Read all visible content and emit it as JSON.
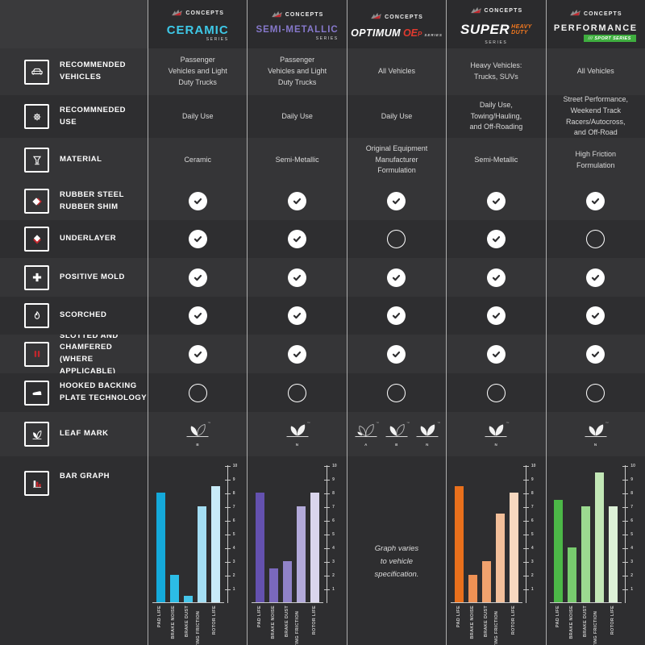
{
  "page": {
    "background": "#3A3A3C"
  },
  "brand": {
    "logo_text": "CONCEPTS"
  },
  "leaf_tm": "™",
  "rows": [
    {
      "id": "recommended-vehicles",
      "label": "RECOMMENDED\nVEHICLES",
      "icon": "car-icon"
    },
    {
      "id": "recommended-use",
      "label": "RECOMMNEDED\nUSE",
      "icon": "gear-icon"
    },
    {
      "id": "material",
      "label": "MATERIAL",
      "icon": "flask-icon"
    },
    {
      "id": "rubber-steel-rubber-shim",
      "label": "RUBBER STEEL\nRUBBER SHIM",
      "icon": "shim-icon"
    },
    {
      "id": "underlayer",
      "label": "UNDERLAYER",
      "icon": "underlayer-icon"
    },
    {
      "id": "positive-mold",
      "label": "POSITIVE MOLD",
      "icon": "plus-icon"
    },
    {
      "id": "scorched",
      "label": "SCORCHED",
      "icon": "flame-icon"
    },
    {
      "id": "slotted-chamfered",
      "label": "SLOTTED AND\nCHAMFERED (WHERE\nAPPLICABLE)",
      "icon": "slots-icon"
    },
    {
      "id": "hooked-backing-plate",
      "label": "HOOKED BACKING\nPLATE TECHNOLOGY",
      "icon": "hook-icon"
    },
    {
      "id": "leaf-mark",
      "label": "LEAF MARK",
      "icon": "leaf-icon"
    },
    {
      "id": "bar-graph",
      "label": "BAR GRAPH",
      "icon": "bar-chart-icon"
    }
  ],
  "columns": [
    {
      "id": "ceramic",
      "header": {
        "style": "two-tone",
        "name": "CERAMIC",
        "series": "SERIES",
        "accent": "#3EC9E8",
        "name_size": "15px"
      },
      "text_cells": [
        "Passenger\nVehicles and Light\nDuty Trucks",
        "Daily Use",
        "Ceramic"
      ],
      "feature_checks": [
        true,
        true,
        true,
        true,
        true,
        false
      ],
      "leaf_marks": [
        {
          "type": "B",
          "label": "B"
        }
      ],
      "chart_index": 0
    },
    {
      "id": "semi-metallic",
      "header": {
        "style": "two-tone",
        "name": "SEMI-METALLIC",
        "series": "SERIES",
        "accent": "#8678CB",
        "name_size": "11.5px"
      },
      "text_cells": [
        "Passenger\nVehicles and Light\nDuty Trucks",
        "Daily Use",
        "Semi-Metallic"
      ],
      "feature_checks": [
        true,
        true,
        true,
        true,
        true,
        false
      ],
      "leaf_marks": [
        {
          "type": "N",
          "label": "N"
        }
      ],
      "chart_index": 1
    },
    {
      "id": "optimum-oep",
      "header": {
        "style": "optimum",
        "name": "OPTIMUM",
        "accent_text": "OE",
        "accent_sub": "P",
        "series": "SERIES",
        "accent": "#E03A2F"
      },
      "text_cells": [
        "All Vehicles",
        "Daily Use",
        "Original Equipment\nManufacturer\nFormulation"
      ],
      "feature_checks": [
        true,
        false,
        true,
        true,
        true,
        false
      ],
      "leaf_marks": [
        {
          "type": "A",
          "label": "A"
        },
        {
          "type": "B",
          "label": "B"
        },
        {
          "type": "N",
          "label": "N"
        }
      ],
      "chart_index": 2
    },
    {
      "id": "super-heavy-duty",
      "header": {
        "style": "super",
        "name": "SUPER",
        "duty1": "HEAVY",
        "duty2": "DUTY",
        "series": "SERIES",
        "accent": "#F4791F"
      },
      "text_cells": [
        "Heavy Vehicles:\nTrucks, SUVs",
        "Daily Use,\nTowing/Hauling,\nand Off-Roading",
        "Semi-Metallic"
      ],
      "feature_checks": [
        true,
        true,
        true,
        true,
        true,
        false
      ],
      "leaf_marks": [
        {
          "type": "N",
          "label": "N"
        }
      ],
      "chart_index": 3
    },
    {
      "id": "performance",
      "header": {
        "style": "performance",
        "name": "PERFORMANCE",
        "badge_prefix": "///",
        "badge": "SPORT SERIES",
        "accent": "#3FAE3F"
      },
      "text_cells": [
        "All Vehicles",
        "Street Performance,\nWeekend Track\nRacers/Autocross,\nand Off-Road",
        "High Friction\nFormulation"
      ],
      "feature_checks": [
        true,
        false,
        true,
        true,
        true,
        false
      ],
      "leaf_marks": [
        {
          "type": "N",
          "label": "N"
        }
      ],
      "chart_index": 4
    }
  ],
  "chart_data": [
    {
      "type": "bar",
      "series_name": "Ceramic Series",
      "categories": [
        "PAD LIFE",
        "BRAKE NOISE",
        "BRAKE DUST",
        "OPERATING FRICTION LEVEL",
        "ROTOR LIFE"
      ],
      "values": [
        8,
        2,
        0.5,
        7,
        8.5
      ],
      "colors": [
        "#14A9DA",
        "#2CBCE6",
        "#45C5E9",
        "#A3DEF3",
        "#C8EBF8"
      ],
      "ylim": [
        0,
        10
      ],
      "yticks": [
        1,
        2,
        3,
        4,
        5,
        6,
        7,
        8,
        9,
        10
      ],
      "axis_side": "right"
    },
    {
      "type": "bar",
      "series_name": "Semi-Metallic Series",
      "categories": [
        "PAD LIFE",
        "BRAKE NOISE",
        "BRAKE DUST",
        "OPERATING FRICTION LEVEL",
        "ROTOR LIFE"
      ],
      "values": [
        8,
        2.5,
        3,
        7,
        8
      ],
      "colors": [
        "#6451AF",
        "#7A68BD",
        "#9083C8",
        "#B3AADA",
        "#DAD5EC"
      ],
      "ylim": [
        0,
        10
      ],
      "yticks": [
        1,
        2,
        3,
        4,
        5,
        6,
        7,
        8,
        9,
        10
      ],
      "axis_side": "right"
    },
    {
      "type": "none",
      "series_name": "Optimum OEP Series",
      "note": "Graph varies\nto vehicle\nspecification."
    },
    {
      "type": "bar",
      "series_name": "Super Heavy Duty Series",
      "categories": [
        "PAD LIFE",
        "BRAKE NOISE",
        "BRAKE DUST",
        "OPERATING FRICTION LEVEL",
        "ROTOR LIFE"
      ],
      "values": [
        8.5,
        2,
        3,
        6.5,
        8
      ],
      "colors": [
        "#E9701C",
        "#EE9154",
        "#F0A26E",
        "#F3BF9A",
        "#F6D7BF"
      ],
      "ylim": [
        0,
        10
      ],
      "yticks": [
        1,
        2,
        3,
        4,
        5,
        6,
        7,
        8,
        9,
        10
      ],
      "axis_side": "right"
    },
    {
      "type": "bar",
      "series_name": "Performance Sport Series",
      "categories": [
        "PAD LIFE",
        "BRAKE NOISE",
        "BRAKE DUST",
        "OPERATING FRICTION LEVEL",
        "ROTOR LIFE"
      ],
      "values": [
        7.5,
        4,
        7,
        9.5,
        7
      ],
      "colors": [
        "#4CB847",
        "#78CC6E",
        "#9CDA90",
        "#C2E7B6",
        "#DDF1D7"
      ],
      "ylim": [
        0,
        10
      ],
      "yticks": [
        1,
        2,
        3,
        4,
        5,
        6,
        7,
        8,
        9,
        10
      ],
      "axis_side": "right"
    }
  ]
}
